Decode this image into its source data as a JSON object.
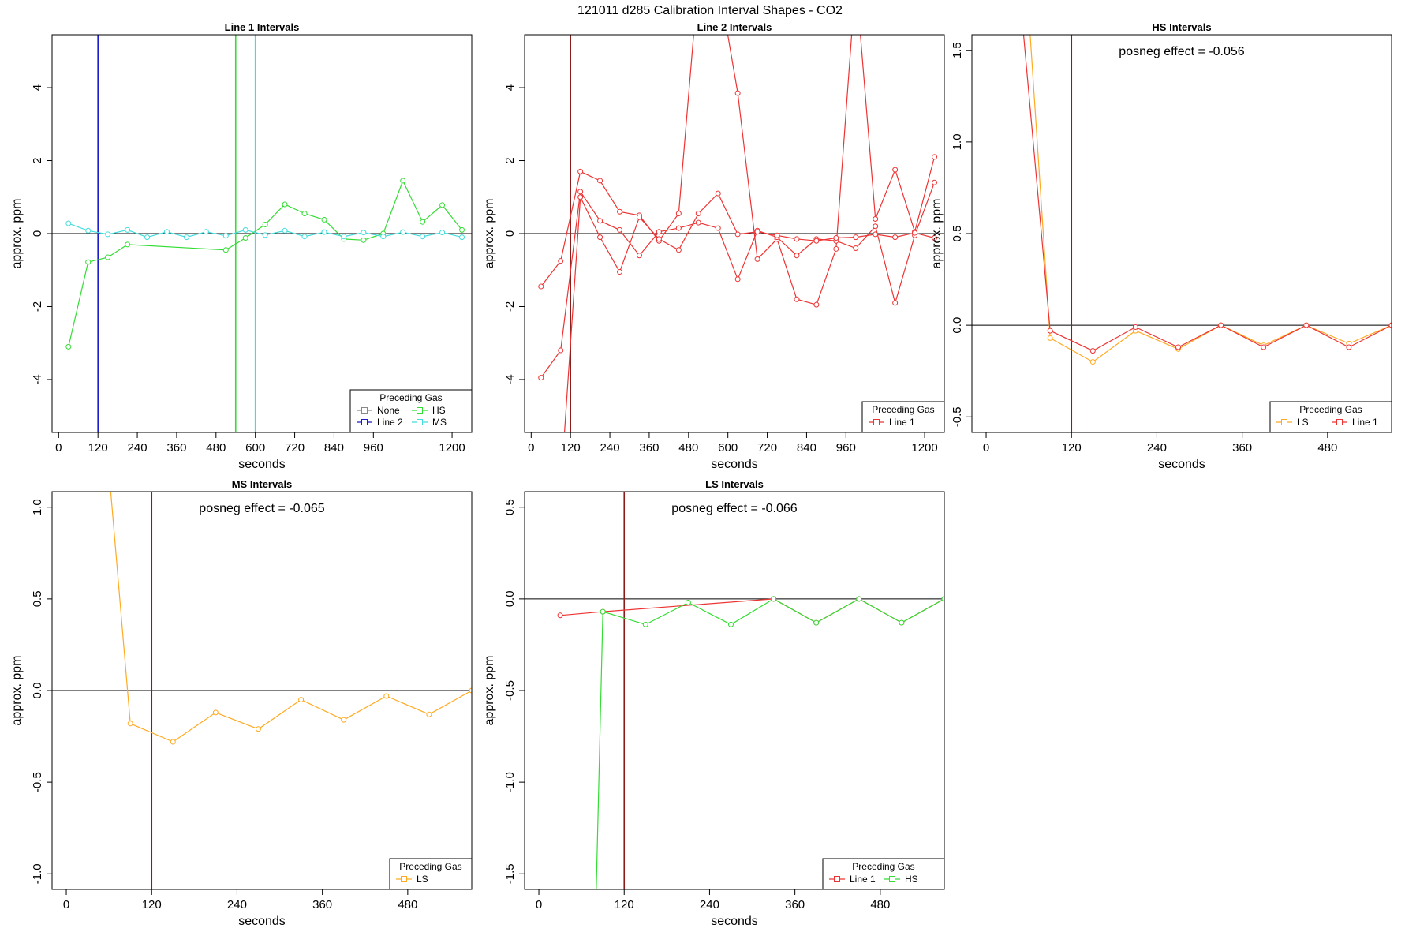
{
  "suptitle": "121011  d285   Calibration Interval Shapes - CO2",
  "chart_data": [
    {
      "type": "line",
      "title": "Line 1 Intervals",
      "xlabel": "seconds",
      "ylabel": "approx. ppm",
      "xlim": [
        -20,
        1260
      ],
      "ylim": [
        -5.45,
        5.45
      ],
      "xticks": [
        0,
        120,
        240,
        360,
        480,
        600,
        720,
        840,
        960,
        1200
      ],
      "yticks": [
        -4,
        -2,
        0,
        2,
        4
      ],
      "hline": 0,
      "vlines": [
        {
          "x": 120,
          "color": "#1a1acc"
        },
        {
          "x": 540,
          "color": "#33dd33"
        },
        {
          "x": 600,
          "color": "#44dddd"
        }
      ],
      "legend": {
        "title": "Preceding Gas",
        "position": "bottom-right",
        "cols": 2,
        "entries": [
          {
            "label": "None",
            "color": "#888888"
          },
          {
            "label": "Line 2",
            "color": "#1a1acc"
          },
          {
            "label": "HS",
            "color": "#33dd33"
          },
          {
            "label": "MS",
            "color": "#44dddd"
          }
        ]
      },
      "series": [
        {
          "name": "HS",
          "color": "#33dd33",
          "x": [
            30,
            90,
            150,
            210,
            510,
            570,
            630,
            690,
            750,
            810,
            870,
            930,
            990,
            1050,
            1110,
            1170,
            1230
          ],
          "y": [
            -3.1,
            -0.78,
            -0.65,
            -0.3,
            -0.45,
            -0.12,
            0.25,
            0.8,
            0.55,
            0.38,
            -0.15,
            -0.18,
            0.0,
            1.45,
            0.32,
            0.78,
            0.1
          ]
        },
        {
          "name": "MS",
          "color": "#44dddd",
          "x": [
            30,
            90,
            150,
            210,
            270,
            330,
            390,
            450,
            510,
            570,
            630,
            690,
            750,
            810,
            870,
            930,
            990,
            1050,
            1110,
            1170,
            1230
          ],
          "y": [
            0.28,
            0.08,
            -0.02,
            0.1,
            -0.1,
            0.05,
            -0.1,
            0.05,
            -0.06,
            0.1,
            -0.04,
            0.08,
            -0.08,
            0.04,
            -0.08,
            0.03,
            -0.08,
            0.04,
            -0.08,
            0.03,
            -0.1
          ]
        }
      ]
    },
    {
      "type": "line",
      "title": "Line 2 Intervals",
      "xlabel": "seconds",
      "ylabel": "approx. ppm",
      "xlim": [
        -20,
        1260
      ],
      "ylim": [
        -5.45,
        5.45
      ],
      "xticks": [
        0,
        120,
        240,
        360,
        480,
        600,
        720,
        840,
        960,
        1200
      ],
      "yticks": [
        -4,
        -2,
        0,
        2,
        4
      ],
      "hline": 0,
      "vlines": [
        {
          "x": 120,
          "color": "#8b1a1a"
        }
      ],
      "legend": {
        "title": "Preceding Gas",
        "position": "bottom-right",
        "cols": 1,
        "entries": [
          {
            "label": "Line 1",
            "color": "#ee3333"
          }
        ]
      },
      "series": [
        {
          "name": "Line 1 a",
          "color": "#ee3333",
          "x": [
            30,
            90,
            150,
            210,
            270,
            330,
            390,
            450,
            510,
            570,
            630,
            690,
            750,
            810,
            870,
            930,
            990,
            1050,
            1110,
            1170,
            1230
          ],
          "y": [
            -1.45,
            -0.75,
            1.7,
            1.45,
            0.6,
            0.5,
            -0.2,
            0.55,
            7.0,
            7.0,
            3.85,
            -0.7,
            -0.15,
            -1.8,
            -1.95,
            -0.42,
            7.0,
            0.4,
            1.75,
            0.05,
            2.1
          ]
        },
        {
          "name": "Line 1 b",
          "color": "#ee3333",
          "x": [
            30,
            90,
            150,
            210,
            270,
            330,
            390,
            450,
            510,
            570,
            630,
            690,
            750,
            810,
            870,
            930,
            990,
            1050,
            1110,
            1170,
            1230
          ],
          "y": [
            -3.95,
            -3.2,
            1.15,
            0.35,
            0.1,
            -0.6,
            0.05,
            0.15,
            0.3,
            0.15,
            -1.25,
            0.08,
            -0.1,
            -0.6,
            -0.15,
            -0.2,
            -0.4,
            0.2,
            -1.9,
            -0.05,
            1.4
          ]
        },
        {
          "name": "Line 1 c",
          "color": "#ee3333",
          "x": [
            90,
            150,
            210,
            270,
            330,
            390,
            450,
            510,
            570,
            630,
            690,
            750,
            810,
            870,
            930,
            990,
            1050,
            1110,
            1170,
            1230
          ],
          "y": [
            -7.0,
            1.0,
            -0.1,
            -1.05,
            0.45,
            -0.15,
            -0.45,
            0.55,
            1.1,
            -0.02,
            0.05,
            -0.05,
            -0.15,
            -0.2,
            -0.12,
            -0.1,
            -0.02,
            -0.1,
            0.02,
            -0.12
          ]
        }
      ]
    },
    {
      "type": "line",
      "title": "HS Intervals",
      "annotation": "posneg effect = -0.056",
      "xlabel": "seconds",
      "ylabel": "approx. ppm",
      "xlim": [
        -20,
        570
      ],
      "ylim": [
        -0.585,
        1.585
      ],
      "xticks": [
        0,
        120,
        240,
        360,
        480
      ],
      "yticks": [
        -0.5,
        0.0,
        0.5,
        1.0,
        1.5
      ],
      "hline": 0,
      "vlines": [
        {
          "x": 120,
          "color": "#8b1a1a"
        }
      ],
      "legend": {
        "title": "Preceding Gas",
        "position": "bottom-right",
        "cols": 2,
        "entries": [
          {
            "label": "LS",
            "color": "#ffaa22"
          },
          {
            "label": "Line 1",
            "color": "#ee3333"
          }
        ]
      },
      "series": [
        {
          "name": "LS",
          "color": "#ffaa22",
          "x": [
            60,
            90,
            150,
            210,
            270,
            330,
            390,
            450,
            510,
            570
          ],
          "y": [
            1.7,
            -0.07,
            -0.2,
            -0.03,
            -0.13,
            0.0,
            -0.11,
            0.0,
            -0.1,
            0.0
          ]
        },
        {
          "name": "Line 1",
          "color": "#ee3333",
          "x": [
            50,
            90,
            150,
            210,
            270,
            330,
            390,
            450,
            510,
            570
          ],
          "y": [
            1.7,
            -0.03,
            -0.14,
            -0.01,
            -0.12,
            0.0,
            -0.12,
            0.0,
            -0.12,
            0.0
          ]
        }
      ]
    },
    {
      "type": "line",
      "title": "MS Intervals",
      "annotation": "posneg effect = -0.065",
      "xlabel": "seconds",
      "ylabel": "approx. ppm",
      "xlim": [
        -20,
        570
      ],
      "ylim": [
        -1.085,
        1.085
      ],
      "xticks": [
        0,
        120,
        240,
        360,
        480
      ],
      "yticks": [
        -1.0,
        -0.5,
        0.0,
        0.5,
        1.0
      ],
      "hline": 0,
      "vlines": [
        {
          "x": 120,
          "color": "#8b1a1a"
        }
      ],
      "legend": {
        "title": "Preceding Gas",
        "position": "bottom-right",
        "cols": 1,
        "entries": [
          {
            "label": "LS",
            "color": "#ffaa22"
          }
        ]
      },
      "series": [
        {
          "name": "LS",
          "color": "#ffaa22",
          "x": [
            60,
            90,
            150,
            210,
            270,
            330,
            390,
            450,
            510,
            570
          ],
          "y": [
            1.2,
            -0.18,
            -0.28,
            -0.12,
            -0.21,
            -0.05,
            -0.16,
            -0.03,
            -0.13,
            0.0
          ]
        }
      ]
    },
    {
      "type": "line",
      "title": "LS Intervals",
      "annotation": "posneg effect = -0.066",
      "xlabel": "seconds",
      "ylabel": "approx. ppm",
      "xlim": [
        -20,
        570
      ],
      "ylim": [
        -1.585,
        0.585
      ],
      "xticks": [
        0,
        120,
        240,
        360,
        480
      ],
      "yticks": [
        -1.5,
        -1.0,
        -0.5,
        0.0,
        0.5
      ],
      "hline": 0,
      "vlines": [
        {
          "x": 120,
          "color": "#8b1a1a"
        }
      ],
      "legend": {
        "title": "Preceding Gas",
        "position": "bottom-right",
        "cols": 2,
        "entries": [
          {
            "label": "Line 1",
            "color": "#ee3333"
          },
          {
            "label": "HS",
            "color": "#33dd33"
          }
        ]
      },
      "series": [
        {
          "name": "Line 1",
          "color": "#ee3333",
          "x": [
            30,
            90,
            330,
            390,
            450,
            510,
            570
          ],
          "y": [
            -0.09,
            -0.07,
            0.0,
            -0.13,
            0.0,
            -0.13,
            0.0
          ]
        },
        {
          "name": "HS",
          "color": "#33dd33",
          "x": [
            80,
            90,
            150,
            210,
            270,
            330,
            390,
            450,
            510,
            570
          ],
          "y": [
            -1.7,
            -0.07,
            -0.14,
            -0.02,
            -0.14,
            0.0,
            -0.13,
            0.0,
            -0.13,
            0.0
          ]
        }
      ]
    }
  ]
}
